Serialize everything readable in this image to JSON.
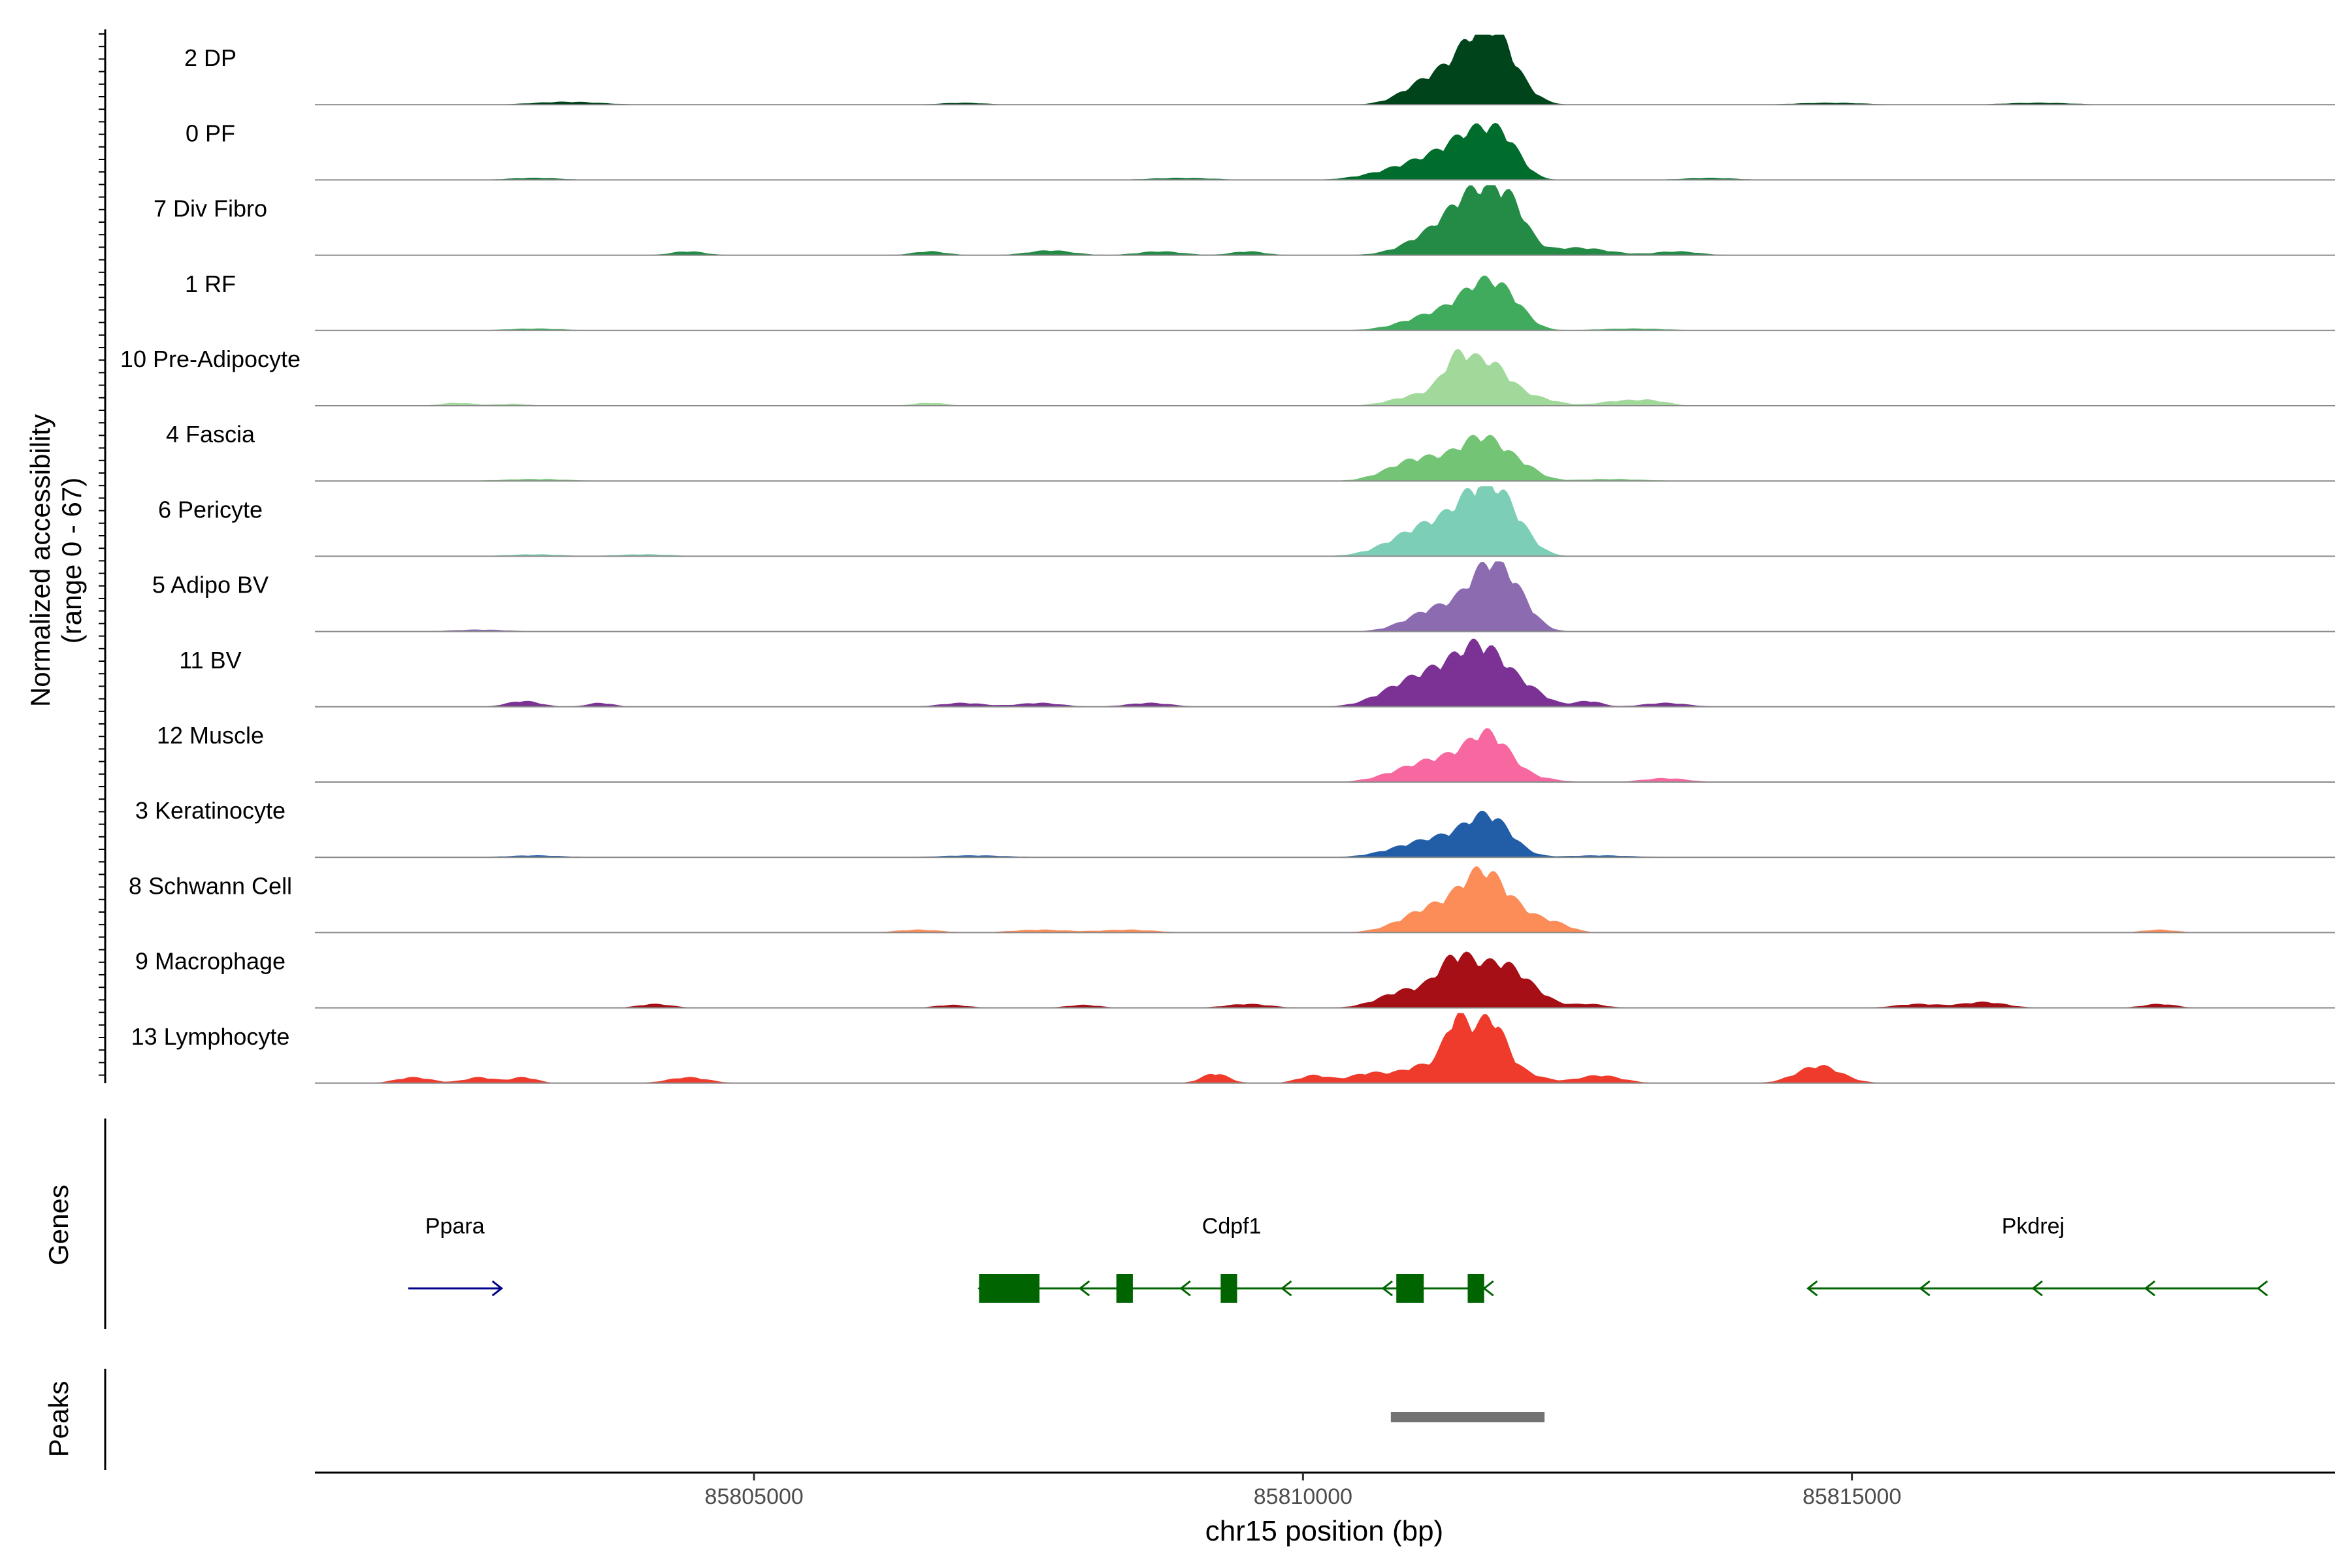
{
  "chart_data": {
    "type": "area",
    "title": "",
    "ylabel": "Normalized accessibility",
    "ylabel_range": "(range 0 - 67)",
    "ylim": [
      0,
      67
    ],
    "xlabel": "chr15 position (bp)",
    "xlim": [
      85801000,
      85819400
    ],
    "xticks": [
      85805000,
      85810000,
      85815000
    ],
    "xtick_labels": [
      "85805000",
      "85810000",
      "85815000"
    ],
    "grid": false,
    "legend": "none",
    "tracks": [
      {
        "name": "2 DP",
        "color": "#00441b",
        "peaks": [
          [
            85811650,
            48,
            200
          ],
          [
            85811400,
            30,
            280
          ],
          [
            85811050,
            10,
            200
          ],
          [
            85811800,
            26,
            160
          ],
          [
            85812050,
            6,
            140
          ]
        ],
        "noise": [
          [
            85803300,
            3,
            300
          ],
          [
            85806900,
            2,
            200
          ],
          [
            85814800,
            2,
            300
          ],
          [
            85816700,
            2,
            300
          ]
        ]
      },
      {
        "name": "0 PF",
        "color": "#006d2c",
        "peaks": [
          [
            85811600,
            40,
            220
          ],
          [
            85811200,
            22,
            300
          ],
          [
            85811850,
            24,
            150
          ],
          [
            85810700,
            4,
            250
          ]
        ],
        "noise": [
          [
            85803000,
            2,
            250
          ],
          [
            85808900,
            2,
            300
          ],
          [
            85813700,
            2,
            250
          ]
        ]
      },
      {
        "name": "7 Div Fibro",
        "color": "#238b45",
        "peaks": [
          [
            85811600,
            60,
            230
          ],
          [
            85811200,
            20,
            260
          ],
          [
            85811900,
            35,
            150
          ],
          [
            85812400,
            6,
            200
          ]
        ],
        "noise": [
          [
            85804400,
            4,
            150
          ],
          [
            85806600,
            4,
            150
          ],
          [
            85807700,
            5,
            200
          ],
          [
            85808700,
            4,
            200
          ],
          [
            85809500,
            4,
            150
          ],
          [
            85812700,
            4,
            200
          ],
          [
            85813400,
            4,
            200
          ]
        ]
      },
      {
        "name": "1 RF",
        "color": "#41ab5d",
        "peaks": [
          [
            85811650,
            40,
            200
          ],
          [
            85811250,
            18,
            300
          ],
          [
            85811900,
            18,
            160
          ]
        ],
        "noise": [
          [
            85803000,
            2,
            250
          ],
          [
            85813000,
            2,
            300
          ]
        ]
      },
      {
        "name": "10 Pre-Adipocyte",
        "color": "#a1d99b",
        "peaks": [
          [
            85811400,
            38,
            130
          ],
          [
            85811700,
            42,
            180
          ],
          [
            85811100,
            12,
            250
          ],
          [
            85812100,
            8,
            200
          ]
        ],
        "noise": [
          [
            85802300,
            3,
            150
          ],
          [
            85802800,
            2,
            150
          ],
          [
            85806600,
            3,
            150
          ],
          [
            85812900,
            5,
            200
          ],
          [
            85813200,
            4,
            150
          ]
        ]
      },
      {
        "name": "4 Fascia",
        "color": "#74c476",
        "peaks": [
          [
            85811650,
            40,
            200
          ],
          [
            85811200,
            20,
            280
          ],
          [
            85810900,
            8,
            220
          ],
          [
            85812000,
            12,
            160
          ]
        ],
        "noise": [
          [
            85803000,
            2,
            300
          ],
          [
            85812800,
            2,
            300
          ]
        ]
      },
      {
        "name": "6 Pericyte",
        "color": "#7ccfb6",
        "peaks": [
          [
            85811650,
            56,
            210
          ],
          [
            85811250,
            30,
            300
          ],
          [
            85811900,
            24,
            180
          ],
          [
            85810900,
            8,
            260
          ]
        ],
        "noise": [
          [
            85803000,
            2,
            250
          ],
          [
            85804000,
            2,
            250
          ]
        ]
      },
      {
        "name": "5 Adipo BV",
        "color": "#8c6bb1",
        "peaks": [
          [
            85811700,
            58,
            180
          ],
          [
            85811300,
            24,
            260
          ],
          [
            85811950,
            26,
            160
          ]
        ],
        "noise": [
          [
            85802500,
            2,
            250
          ],
          [
            85811000,
            4,
            200
          ]
        ]
      },
      {
        "name": "11 BV",
        "color": "#7b3294",
        "peaks": [
          [
            85811650,
            52,
            220
          ],
          [
            85811250,
            32,
            280
          ],
          [
            85810850,
            12,
            240
          ],
          [
            85812050,
            14,
            180
          ]
        ],
        "noise": [
          [
            85802900,
            6,
            150
          ],
          [
            85803600,
            4,
            120
          ],
          [
            85806900,
            4,
            200
          ],
          [
            85807600,
            4,
            200
          ],
          [
            85808600,
            4,
            200
          ],
          [
            85812600,
            6,
            120
          ],
          [
            85813300,
            4,
            200
          ]
        ]
      },
      {
        "name": "12 Muscle",
        "color": "#f768a1",
        "peaks": [
          [
            85811700,
            44,
            190
          ],
          [
            85811300,
            22,
            260
          ],
          [
            85810900,
            8,
            230
          ]
        ],
        "noise": [
          [
            85812100,
            4,
            200
          ],
          [
            85813300,
            4,
            200
          ]
        ]
      },
      {
        "name": "3 Keratinocyte",
        "color": "#225ea8",
        "peaks": [
          [
            85811700,
            38,
            200
          ],
          [
            85811300,
            18,
            280
          ],
          [
            85810900,
            6,
            250
          ]
        ],
        "noise": [
          [
            85803000,
            2,
            250
          ],
          [
            85807000,
            2,
            300
          ],
          [
            85812700,
            2,
            300
          ]
        ]
      },
      {
        "name": "8 Schwann Cell",
        "color": "#fc8d59",
        "peaks": [
          [
            85811650,
            56,
            200
          ],
          [
            85811200,
            26,
            280
          ],
          [
            85812000,
            14,
            180
          ],
          [
            85812300,
            8,
            150
          ]
        ],
        "noise": [
          [
            85806500,
            3,
            200
          ],
          [
            85807600,
            3,
            250
          ],
          [
            85808400,
            3,
            250
          ],
          [
            85817800,
            3,
            150
          ]
        ]
      },
      {
        "name": "9 Macrophage",
        "color": "#a50f15",
        "peaks": [
          [
            85811400,
            48,
            170
          ],
          [
            85811800,
            42,
            190
          ],
          [
            85810950,
            18,
            240
          ],
          [
            85812100,
            12,
            170
          ]
        ],
        "noise": [
          [
            85804100,
            4,
            150
          ],
          [
            85806800,
            3,
            150
          ],
          [
            85808000,
            3,
            150
          ],
          [
            85809500,
            4,
            200
          ],
          [
            85812600,
            4,
            150
          ],
          [
            85816200,
            6,
            200
          ],
          [
            85815600,
            4,
            200
          ],
          [
            85817800,
            4,
            150
          ]
        ]
      },
      {
        "name": "13 Lymphocyte",
        "color": "#ef3b2c",
        "peaks": [
          [
            85811400,
            58,
            110
          ],
          [
            85811700,
            64,
            140
          ],
          [
            85811100,
            18,
            200
          ],
          [
            85812000,
            10,
            180
          ]
        ],
        "noise": [
          [
            85801900,
            6,
            160
          ],
          [
            85802500,
            6,
            140
          ],
          [
            85802900,
            6,
            120
          ],
          [
            85804400,
            6,
            180
          ],
          [
            85809200,
            10,
            120
          ],
          [
            85810100,
            8,
            140
          ],
          [
            85810600,
            10,
            180
          ],
          [
            85812700,
            8,
            200
          ],
          [
            85814700,
            18,
            200
          ]
        ]
      }
    ],
    "genes": [
      {
        "name": "Ppara",
        "strand": "+",
        "start": 85801850,
        "end": 85802700,
        "exons": [],
        "color": "#00008b"
      },
      {
        "name": "Cdpf1",
        "strand": "-",
        "start": 85807050,
        "end": 85811650,
        "exons": [
          [
            85807050,
            85807600
          ],
          [
            85808300,
            85808450
          ],
          [
            85809250,
            85809400
          ],
          [
            85810850,
            85811100
          ],
          [
            85811500,
            85811650
          ]
        ],
        "color": "#006400"
      },
      {
        "name": "Pkdrej",
        "strand": "-",
        "start": 85814600,
        "end": 85818700,
        "exons": [],
        "color": "#006400"
      }
    ],
    "genes_label": "Genes",
    "peaks_label": "Peaks",
    "peak_regions": [
      [
        85810800,
        85812200
      ]
    ]
  }
}
